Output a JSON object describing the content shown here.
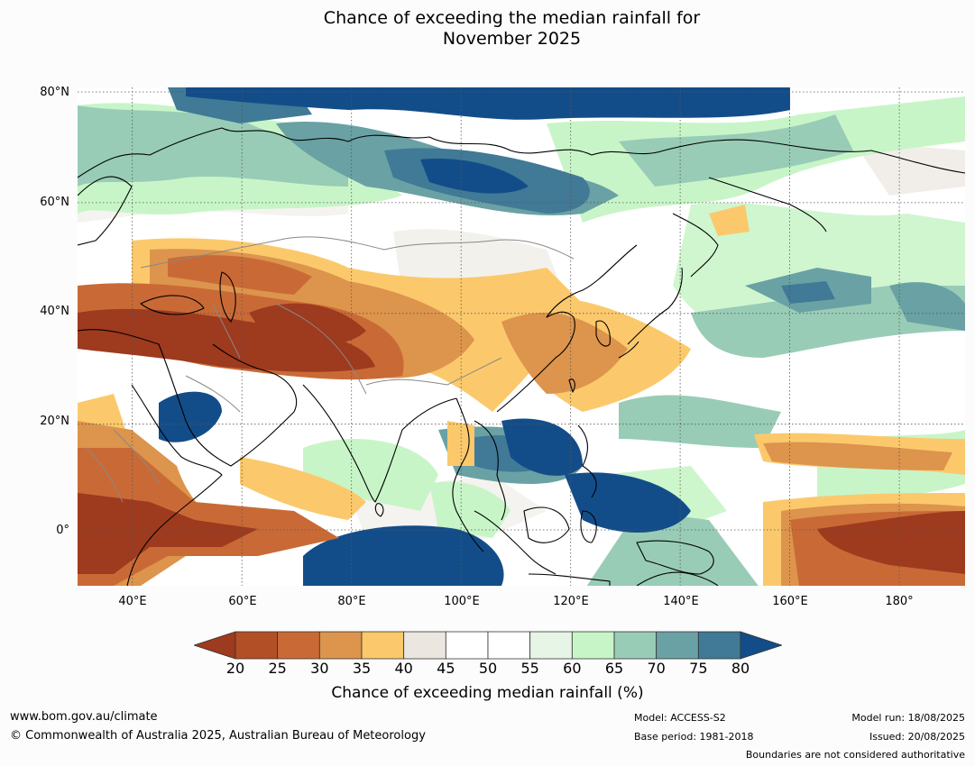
{
  "title_line1": "Chance of exceeding the median rainfall for",
  "title_line2": "November 2025",
  "map": {
    "lat_labels": [
      "80°N",
      "60°N",
      "40°N",
      "20°N",
      "0°"
    ],
    "lon_labels": [
      "40°E",
      "60°E",
      "80°E",
      "100°E",
      "120°E",
      "140°E",
      "160°E",
      "180°"
    ],
    "lon_range": [
      30,
      192
    ],
    "lat_range": [
      -10,
      80
    ],
    "gridlines": true,
    "legend_position": "bottom-center"
  },
  "colorbar": {
    "ticks": [
      "20",
      "25",
      "30",
      "35",
      "40",
      "45",
      "50",
      "55",
      "60",
      "65",
      "70",
      "75",
      "80"
    ],
    "colors": [
      "#9e3a1e",
      "#b34f26",
      "#c96a36",
      "#dd944c",
      "#fbc96c",
      "#ebe7e0",
      "#ffffff",
      "#ffffff",
      "#e6f5e6",
      "#c8f5c8",
      "#98ccb6",
      "#6aa1a4",
      "#407a96",
      "#134d89"
    ],
    "label": "Chance of exceeding median rainfall (%)"
  },
  "footer": {
    "website": "www.bom.gov.au/climate",
    "copyright": "© Commonwealth of Australia 2025, Australian Bureau of Meteorology",
    "model": "Model: ACCESS-S2",
    "base_period": "Base period: 1981-2018",
    "model_run": "Model run: 18/08/2025",
    "issued": "Issued: 20/08/2025",
    "disclaimer": "Boundaries are not considered authoritative"
  }
}
